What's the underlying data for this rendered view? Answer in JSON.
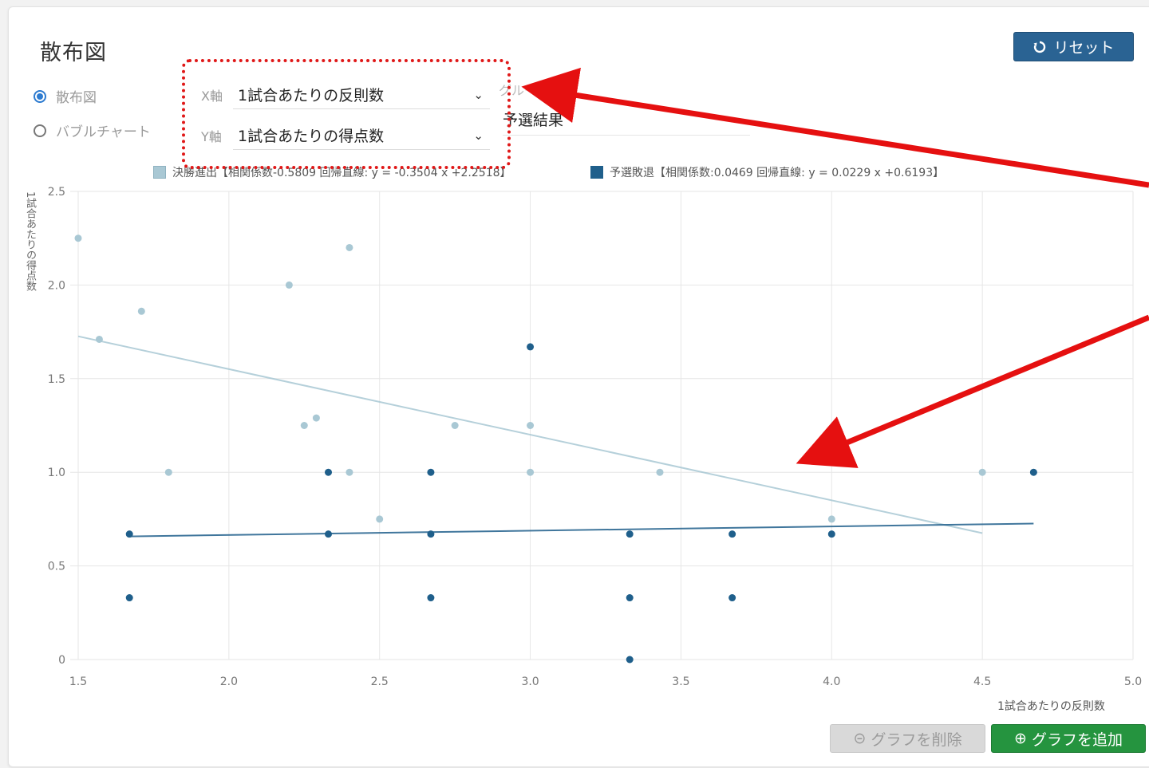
{
  "page": {
    "title": "散布図",
    "reset_label": "リセット"
  },
  "chart_kind": {
    "scatter_label": "散布図",
    "bubble_label": "バブルチャート",
    "selected": "scatter"
  },
  "axis_select": {
    "x_label": "X軸",
    "x_value": "1試合あたりの反則数",
    "y_label": "Y軸",
    "y_value": "1試合あたりの得点数"
  },
  "group": {
    "label": "グループ表示",
    "value": "予選結果"
  },
  "legend": [
    {
      "name": "決勝進出",
      "text": "決勝進出【相関係数-0.5809 回帰直線: y = -0.3504 x +2.2518】",
      "color": "#a9c8d4"
    },
    {
      "name": "予選敗退",
      "text": "予選敗退【相関係数:0.0469 回帰直線: y = 0.0229 x +0.6193】",
      "color": "#1f5f8b"
    }
  ],
  "buttons": {
    "delete_label": "グラフを削除",
    "add_label": "グラフを追加"
  },
  "icons": {
    "reset": "reset-icon",
    "delete": "circle-minus-icon",
    "add": "circle-plus-icon",
    "chevron": "chevron-down-icon"
  },
  "chart_data": {
    "type": "scatter",
    "xlabel": "1試合あたりの反則数",
    "ylabel": "1試合あたりの得点数",
    "xlim": [
      1.5,
      5.0
    ],
    "ylim": [
      0,
      2.5
    ],
    "xticks": [
      "1.5",
      "2.0",
      "2.5",
      "3.0",
      "3.5",
      "4.0",
      "4.5",
      "5.0"
    ],
    "yticks": [
      "0",
      "0.5",
      "1.0",
      "1.5",
      "2.0",
      "2.5"
    ],
    "grid": true,
    "legend_position": "top",
    "series": [
      {
        "name": "決勝進出",
        "color": "#a9c8d4",
        "points": [
          [
            1.5,
            2.25
          ],
          [
            1.57,
            1.71
          ],
          [
            1.71,
            1.86
          ],
          [
            1.8,
            1.0
          ],
          [
            2.2,
            2.0
          ],
          [
            2.25,
            1.25
          ],
          [
            2.29,
            1.29
          ],
          [
            2.4,
            2.2
          ],
          [
            2.4,
            1.0
          ],
          [
            2.5,
            0.75
          ],
          [
            2.75,
            1.25
          ],
          [
            3.0,
            1.25
          ],
          [
            3.0,
            1.0
          ],
          [
            3.43,
            1.0
          ],
          [
            4.0,
            0.75
          ],
          [
            4.5,
            1.0
          ]
        ],
        "trend": {
          "slope": -0.3504,
          "intercept": 2.2518,
          "x_range": [
            1.5,
            4.5
          ]
        }
      },
      {
        "name": "予選敗退",
        "color": "#1f5f8b",
        "points": [
          [
            1.67,
            0.67
          ],
          [
            1.67,
            0.33
          ],
          [
            2.33,
            1.0
          ],
          [
            2.33,
            0.67
          ],
          [
            2.67,
            1.0
          ],
          [
            2.67,
            0.67
          ],
          [
            2.67,
            0.33
          ],
          [
            3.0,
            1.67
          ],
          [
            3.33,
            0.67
          ],
          [
            3.33,
            0.33
          ],
          [
            3.33,
            0.0
          ],
          [
            3.67,
            0.67
          ],
          [
            3.67,
            0.33
          ],
          [
            4.0,
            0.67
          ],
          [
            4.67,
            1.0
          ]
        ],
        "trend": {
          "slope": 0.0229,
          "intercept": 0.6193,
          "x_range": [
            1.67,
            4.67
          ]
        }
      }
    ]
  }
}
